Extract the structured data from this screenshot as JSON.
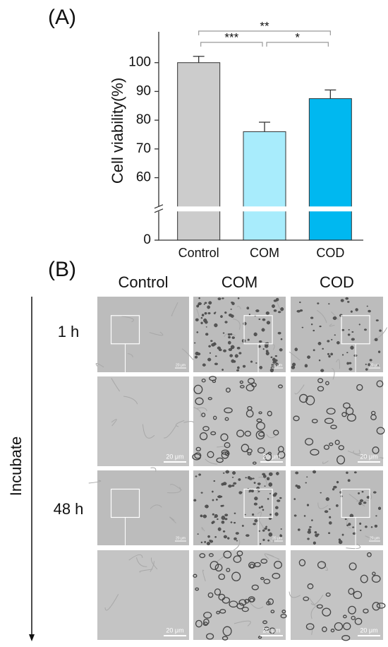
{
  "chart_data": {
    "type": "bar",
    "panel_label": "(A)",
    "ylabel": "Cell viability(%)",
    "categories": [
      "Control",
      "COM",
      "COD"
    ],
    "values": [
      100,
      76,
      87.5
    ],
    "errors": [
      2.2,
      3.3,
      3.0
    ],
    "colors": [
      "#cccccc",
      "#a8ecfc",
      "#00b8f0"
    ],
    "ylim": [
      0,
      110
    ],
    "axis_break": [
      10,
      50
    ],
    "yticks": [
      0,
      60,
      70,
      80,
      90,
      100
    ],
    "significance": [
      {
        "groups": [
          0,
          1
        ],
        "label": "***"
      },
      {
        "groups": [
          1,
          2
        ],
        "label": "*"
      },
      {
        "groups": [
          0,
          2
        ],
        "label": "**"
      }
    ]
  },
  "micrographs": {
    "panel_label": "(B)",
    "columns": [
      "Control",
      "COM",
      "COD"
    ],
    "rows": [
      "1 h",
      "48 h"
    ],
    "axis_label": "Incubate",
    "scale_bar": "20 μm"
  }
}
